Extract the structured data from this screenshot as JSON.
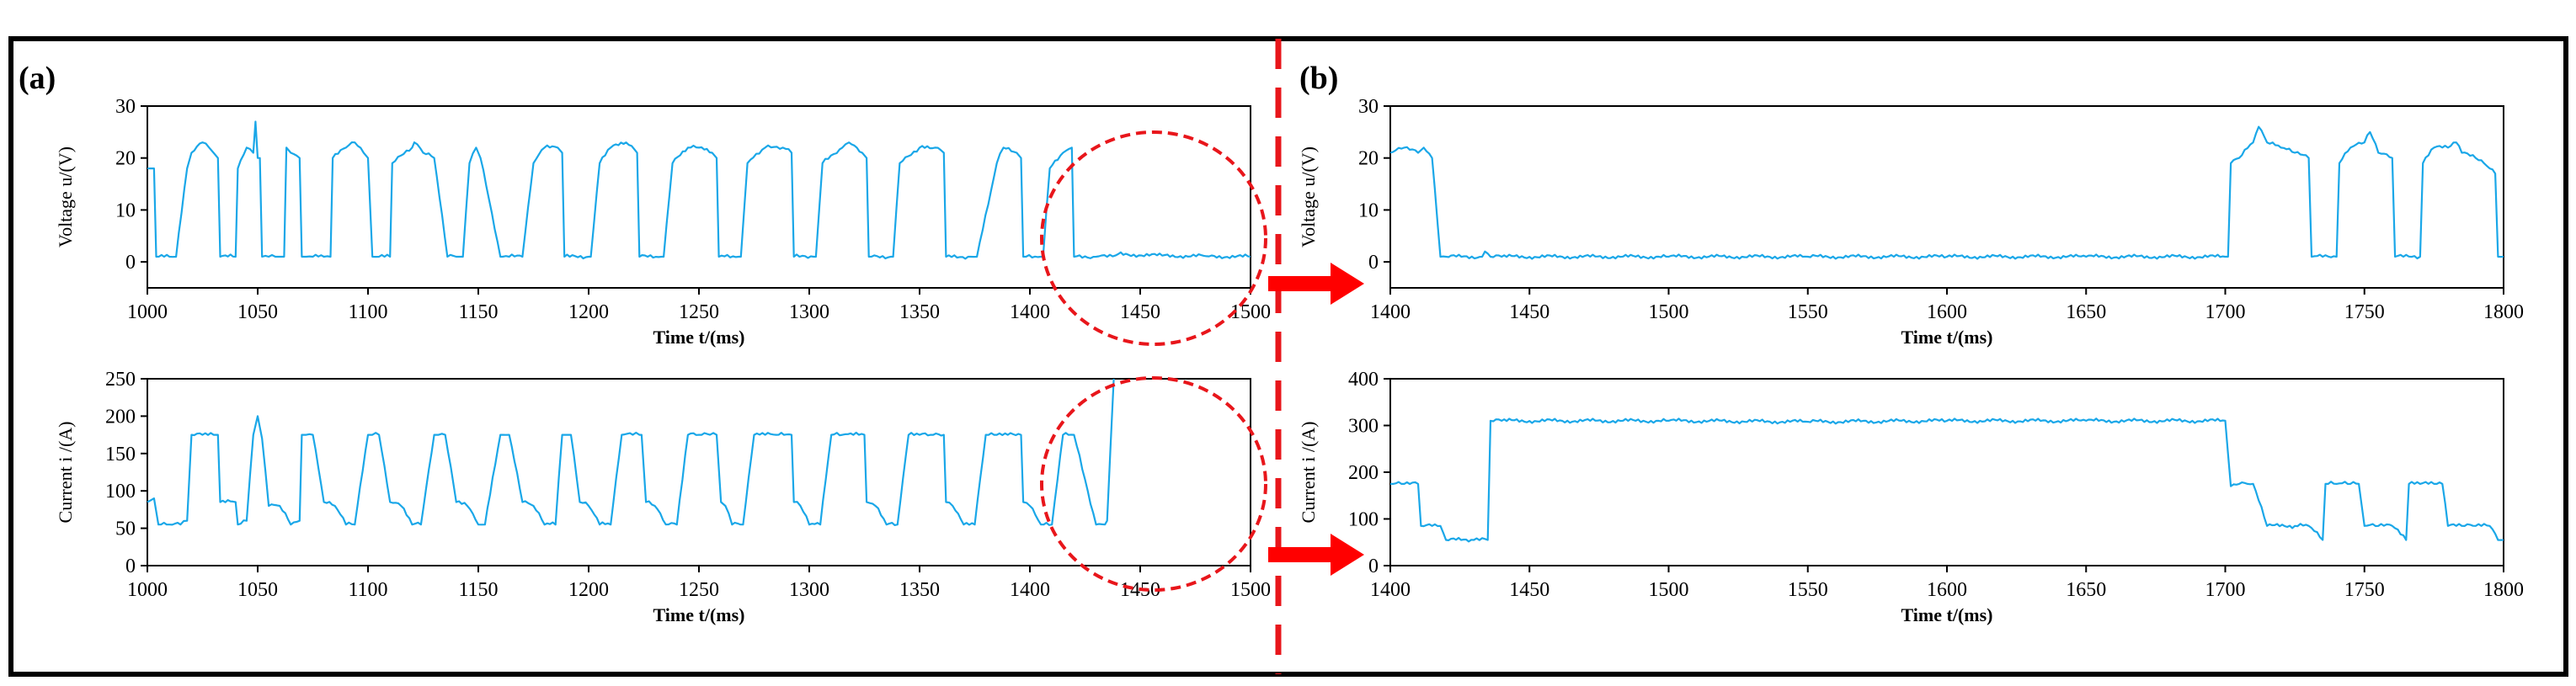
{
  "panels": {
    "a_label": "(a)",
    "b_label": "(b)"
  },
  "colors": {
    "trace": "#1aa7e8",
    "highlight": "#e8161b",
    "arrow": "#ff0000",
    "frame": "#000000"
  },
  "chart_data": [
    {
      "id": "a-voltage",
      "type": "line",
      "xlabel": "Time t/(ms)",
      "ylabel": "Voltage u/(V)",
      "xlim": [
        1000,
        1500
      ],
      "ylim": [
        -5,
        30
      ],
      "xticks": [
        1000,
        1050,
        1100,
        1150,
        1200,
        1250,
        1300,
        1350,
        1400,
        1450,
        1500
      ],
      "yticks": [
        0,
        10,
        20,
        30
      ],
      "series": [
        {
          "name": "voltage",
          "x": [
            1000,
            1003,
            1004,
            1010,
            1013,
            1018,
            1020,
            1025,
            1028,
            1030,
            1032,
            1033,
            1040,
            1041,
            1045,
            1048,
            1049,
            1050,
            1051,
            1052,
            1055,
            1058,
            1060,
            1062,
            1063,
            1065,
            1069,
            1070,
            1072,
            1075,
            1080,
            1083,
            1084,
            1090,
            1094,
            1098,
            1100,
            1102,
            1105,
            1110,
            1111,
            1120,
            1121,
            1125,
            1130,
            1136,
            1140,
            1143,
            1146,
            1149,
            1150,
            1151,
            1160,
            1161,
            1164,
            1170,
            1175,
            1180,
            1186,
            1188,
            1189,
            1200,
            1201,
            1205,
            1210,
            1217,
            1222,
            1223,
            1233,
            1234,
            1238,
            1245,
            1250,
            1256,
            1258,
            1259,
            1268,
            1269,
            1272,
            1280,
            1288,
            1292,
            1293,
            1302,
            1303,
            1306,
            1315,
            1318,
            1324,
            1326,
            1327,
            1337,
            1338,
            1341,
            1350,
            1357,
            1361,
            1362,
            1372,
            1373,
            1376,
            1385,
            1388,
            1394,
            1396,
            1397,
            1405,
            1406,
            1409,
            1415,
            1419,
            1420,
            1430,
            1440,
            1460,
            1480,
            1500
          ],
          "y": [
            18,
            18,
            1,
            1,
            1,
            18,
            21,
            23,
            22,
            21,
            20,
            1,
            1,
            18,
            22,
            21,
            27,
            20,
            20,
            1,
            1,
            1,
            1,
            1,
            22,
            21,
            20,
            1,
            1,
            1,
            1,
            1,
            20,
            22,
            23,
            21,
            20,
            1,
            1,
            1,
            19,
            22,
            23,
            21,
            20,
            1,
            1,
            1,
            19,
            22,
            21,
            20,
            1,
            1,
            1,
            1,
            19,
            22,
            22,
            21,
            1,
            1,
            1,
            19,
            22,
            23,
            21,
            1,
            1,
            1,
            19,
            22,
            22,
            21,
            20,
            1,
            1,
            1,
            19,
            22,
            22,
            21,
            1,
            1,
            1,
            19,
            22,
            23,
            21,
            20,
            1,
            1,
            1,
            19,
            22,
            22,
            21,
            1,
            1,
            1,
            1,
            19,
            22,
            21,
            20,
            1,
            1,
            1,
            18,
            21,
            22,
            1,
            1,
            1.5,
            1.2,
            1.1,
            1
          ]
        }
      ]
    },
    {
      "id": "a-current",
      "type": "line",
      "xlabel": "Time t/(ms)",
      "ylabel": "Current i /(A)",
      "xlim": [
        1000,
        1500
      ],
      "ylim": [
        0,
        250
      ],
      "xticks": [
        1000,
        1050,
        1100,
        1150,
        1200,
        1250,
        1300,
        1350,
        1400,
        1450,
        1500
      ],
      "yticks": [
        0,
        50,
        100,
        150,
        200,
        250
      ],
      "series": [
        {
          "name": "current",
          "x": [
            1000,
            1003,
            1005,
            1010,
            1015,
            1018,
            1020,
            1025,
            1030,
            1032,
            1033,
            1040,
            1041,
            1045,
            1048,
            1050,
            1052,
            1055,
            1060,
            1065,
            1069,
            1070,
            1072,
            1075,
            1080,
            1085,
            1090,
            1094,
            1100,
            1102,
            1105,
            1110,
            1115,
            1120,
            1124,
            1130,
            1132,
            1135,
            1140,
            1145,
            1150,
            1153,
            1160,
            1161,
            1164,
            1170,
            1175,
            1180,
            1185,
            1188,
            1190,
            1192,
            1196,
            1200,
            1205,
            1210,
            1215,
            1220,
            1223,
            1224,
            1226,
            1230,
            1235,
            1240,
            1245,
            1250,
            1255,
            1258,
            1260,
            1262,
            1265,
            1270,
            1275,
            1280,
            1285,
            1292,
            1293,
            1296,
            1300,
            1305,
            1310,
            1315,
            1320,
            1325,
            1326,
            1330,
            1335,
            1340,
            1345,
            1350,
            1355,
            1361,
            1362,
            1365,
            1370,
            1375,
            1380,
            1385,
            1390,
            1396,
            1397,
            1400,
            1405,
            1410,
            1415,
            1420,
            1430,
            1434,
            1435,
            1438
          ],
          "y": [
            85,
            90,
            55,
            55,
            55,
            60,
            175,
            175,
            175,
            175,
            85,
            85,
            55,
            60,
            175,
            200,
            170,
            80,
            80,
            55,
            60,
            175,
            175,
            175,
            85,
            80,
            55,
            55,
            175,
            175,
            175,
            85,
            80,
            55,
            55,
            175,
            175,
            175,
            85,
            80,
            55,
            55,
            175,
            175,
            175,
            85,
            80,
            55,
            55,
            175,
            175,
            175,
            85,
            80,
            55,
            55,
            175,
            175,
            175,
            175,
            85,
            80,
            55,
            55,
            175,
            175,
            175,
            175,
            85,
            80,
            55,
            55,
            175,
            175,
            175,
            175,
            85,
            80,
            55,
            55,
            175,
            175,
            175,
            175,
            85,
            80,
            55,
            55,
            175,
            175,
            175,
            175,
            85,
            80,
            55,
            55,
            175,
            175,
            175,
            175,
            85,
            80,
            55,
            55,
            175,
            175,
            55,
            55,
            60,
            250
          ]
        }
      ]
    },
    {
      "id": "b-voltage",
      "type": "line",
      "xlabel": "Time t/(ms)",
      "ylabel": "Voltage u/(V)",
      "xlim": [
        1400,
        1800
      ],
      "ylim": [
        -5,
        30
      ],
      "xticks": [
        1400,
        1450,
        1500,
        1550,
        1600,
        1650,
        1700,
        1750,
        1800
      ],
      "yticks": [
        0,
        10,
        20,
        30
      ],
      "series": [
        {
          "name": "voltage",
          "x": [
            1400,
            1405,
            1410,
            1412,
            1415,
            1418,
            1420,
            1433,
            1434,
            1436,
            1440,
            1500,
            1550,
            1600,
            1650,
            1700,
            1701,
            1702,
            1705,
            1710,
            1712,
            1715,
            1720,
            1725,
            1730,
            1731,
            1740,
            1741,
            1745,
            1750,
            1752,
            1755,
            1760,
            1761,
            1770,
            1771,
            1775,
            1780,
            1783,
            1785,
            1790,
            1795,
            1797,
            1798,
            1800
          ],
          "y": [
            21,
            22,
            21,
            22,
            20,
            1,
            1,
            1,
            2,
            1,
            1,
            1,
            1,
            1,
            1,
            1,
            1,
            19,
            20,
            23,
            26,
            23,
            22,
            21,
            20,
            1,
            1,
            19,
            22,
            23,
            25,
            21,
            20,
            1,
            1,
            19,
            22,
            22,
            23,
            21,
            20,
            18,
            17,
            1,
            1
          ]
        }
      ]
    },
    {
      "id": "b-current",
      "type": "line",
      "xlabel": "Time t/(ms)",
      "ylabel": "Current i /(A)",
      "xlim": [
        1400,
        1800
      ],
      "ylim": [
        0,
        400
      ],
      "xticks": [
        1400,
        1450,
        1500,
        1550,
        1600,
        1650,
        1700,
        1750,
        1800
      ],
      "yticks": [
        0,
        100,
        200,
        300,
        400
      ],
      "series": [
        {
          "name": "current",
          "x": [
            1400,
            1405,
            1410,
            1411,
            1415,
            1418,
            1420,
            1430,
            1435,
            1436,
            1440,
            1500,
            1550,
            1600,
            1650,
            1700,
            1702,
            1705,
            1708,
            1710,
            1715,
            1725,
            1730,
            1735,
            1736,
            1740,
            1745,
            1748,
            1750,
            1755,
            1760,
            1765,
            1766,
            1770,
            1775,
            1778,
            1780,
            1785,
            1790,
            1795,
            1798,
            1800
          ],
          "y": [
            175,
            175,
            175,
            85,
            85,
            85,
            55,
            55,
            55,
            310,
            310,
            310,
            308,
            310,
            310,
            310,
            170,
            175,
            175,
            175,
            85,
            85,
            85,
            55,
            175,
            175,
            175,
            175,
            85,
            85,
            85,
            55,
            175,
            175,
            175,
            175,
            85,
            85,
            85,
            85,
            55,
            55
          ]
        }
      ]
    }
  ]
}
